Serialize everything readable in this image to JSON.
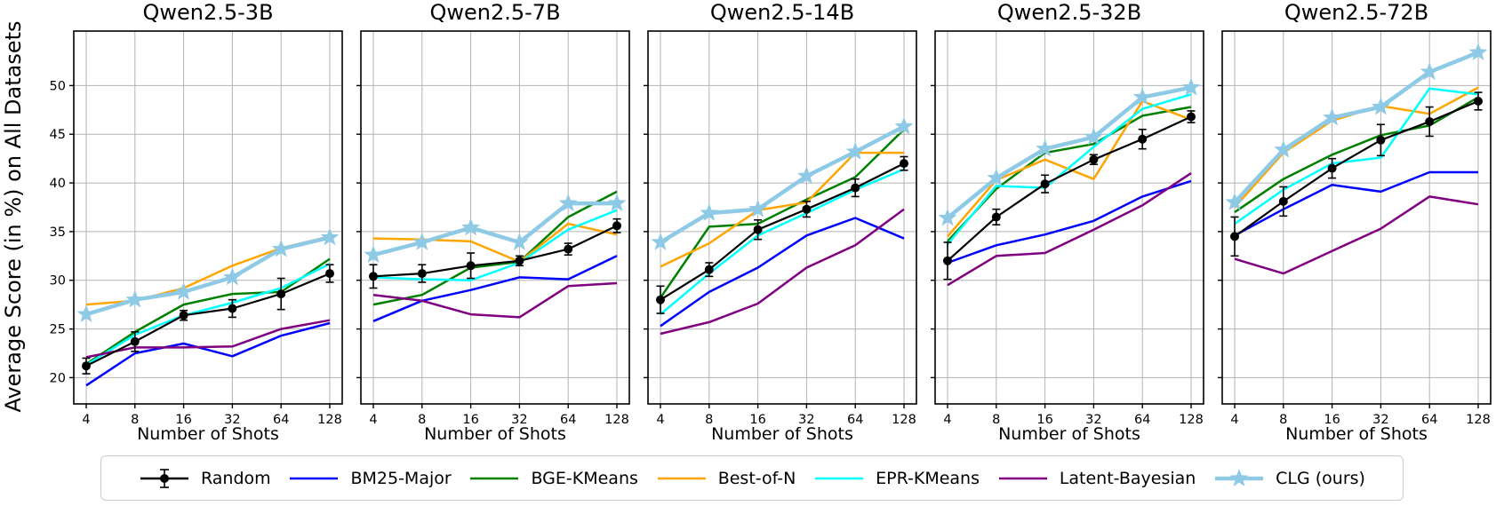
{
  "figure": {
    "ylabel": "Average Score (in %) on All Datasets",
    "xlabel": "Number of Shots",
    "x_tick_labels": [
      "4",
      "8",
      "16",
      "32",
      "64",
      "128"
    ],
    "y_ticks": [
      20,
      25,
      30,
      35,
      40,
      45,
      50
    ],
    "ylim": [
      17.3,
      55.6
    ],
    "x_scale": "log2",
    "grid": true,
    "grid_color": "#b3b3b3",
    "legend_position": "bottom"
  },
  "series_meta": [
    {
      "name": "Random",
      "color": "#000000",
      "line_width": 2.2,
      "marker": "circle-errorbar"
    },
    {
      "name": "BM25-Major",
      "color": "#0000ff",
      "line_width": 2.5,
      "marker": "none"
    },
    {
      "name": "BGE-KMeans",
      "color": "#008000",
      "line_width": 2.5,
      "marker": "none"
    },
    {
      "name": "Best-of-N",
      "color": "#ffa500",
      "line_width": 2.5,
      "marker": "none"
    },
    {
      "name": "EPR-KMeans",
      "color": "#00ffff",
      "line_width": 2.5,
      "marker": "none"
    },
    {
      "name": "Latent-Bayesian",
      "color": "#800080",
      "line_width": 2.5,
      "marker": "none"
    },
    {
      "name": "CLG (ours)",
      "color": "#8ecae6",
      "line_width": 4.5,
      "marker": "star"
    }
  ],
  "chart_data": [
    {
      "type": "line",
      "title": "Qwen2.5-3B",
      "x": [
        4,
        8,
        16,
        32,
        64,
        128
      ],
      "series": [
        {
          "name": "Random",
          "values": [
            21.2,
            23.7,
            26.4,
            27.1,
            28.6,
            30.7
          ]
        },
        {
          "name": "BM25-Major",
          "values": [
            19.2,
            22.5,
            23.5,
            22.2,
            24.3,
            25.6
          ]
        },
        {
          "name": "BGE-KMeans",
          "values": [
            21.4,
            24.7,
            27.5,
            28.6,
            28.8,
            32.2
          ]
        },
        {
          "name": "Best-of-N",
          "values": [
            27.5,
            27.9,
            29.2,
            31.5,
            33.3,
            34.5
          ]
        },
        {
          "name": "EPR-KMeans",
          "values": [
            21.3,
            24.4,
            26.4,
            27.7,
            29.2,
            31.7
          ]
        },
        {
          "name": "Latent-Bayesian",
          "values": [
            22.1,
            23.1,
            23.1,
            23.2,
            25.0,
            25.9
          ]
        },
        {
          "name": "CLG (ours)",
          "values": [
            26.5,
            28.0,
            28.8,
            30.3,
            33.2,
            34.4
          ]
        }
      ],
      "random_err": [
        0.8,
        1.0,
        0.5,
        0.9,
        1.6,
        0.9
      ]
    },
    {
      "type": "line",
      "title": "Qwen2.5-7B",
      "x": [
        4,
        8,
        16,
        32,
        64,
        128
      ],
      "series": [
        {
          "name": "Random",
          "values": [
            30.4,
            30.7,
            31.5,
            32.0,
            33.2,
            35.6
          ]
        },
        {
          "name": "BM25-Major",
          "values": [
            25.8,
            27.9,
            29.0,
            30.3,
            30.1,
            32.5
          ]
        },
        {
          "name": "BGE-KMeans",
          "values": [
            27.5,
            28.5,
            31.3,
            31.9,
            36.5,
            39.1
          ]
        },
        {
          "name": "Best-of-N",
          "values": [
            34.3,
            34.2,
            34.0,
            31.9,
            35.8,
            34.7
          ]
        },
        {
          "name": "EPR-KMeans",
          "values": [
            30.3,
            30.1,
            30.0,
            31.8,
            35.2,
            37.2
          ]
        },
        {
          "name": "Latent-Bayesian",
          "values": [
            28.5,
            27.9,
            26.5,
            26.2,
            29.4,
            29.7
          ]
        },
        {
          "name": "CLG (ours)",
          "values": [
            32.6,
            33.9,
            35.4,
            33.9,
            37.9,
            37.9
          ]
        }
      ],
      "random_err": [
        1.2,
        0.9,
        1.3,
        0.5,
        0.6,
        0.7
      ]
    },
    {
      "type": "line",
      "title": "Qwen2.5-14B",
      "x": [
        4,
        8,
        16,
        32,
        64,
        128
      ],
      "series": [
        {
          "name": "Random",
          "values": [
            28.0,
            31.1,
            35.2,
            37.3,
            39.5,
            42.0
          ]
        },
        {
          "name": "BM25-Major",
          "values": [
            25.3,
            28.8,
            31.3,
            34.6,
            36.4,
            34.3
          ]
        },
        {
          "name": "BGE-KMeans",
          "values": [
            28.2,
            35.5,
            35.8,
            38.3,
            40.6,
            45.5
          ]
        },
        {
          "name": "Best-of-N",
          "values": [
            31.4,
            33.8,
            37.2,
            38.0,
            43.1,
            43.1
          ]
        },
        {
          "name": "EPR-KMeans",
          "values": [
            26.5,
            30.7,
            34.6,
            36.9,
            39.3,
            41.4
          ]
        },
        {
          "name": "Latent-Bayesian",
          "values": [
            24.5,
            25.7,
            27.6,
            31.3,
            33.6,
            37.3
          ]
        },
        {
          "name": "CLG (ours)",
          "values": [
            33.9,
            36.9,
            37.3,
            40.7,
            43.2,
            45.8
          ]
        }
      ],
      "random_err": [
        1.4,
        0.7,
        1.0,
        0.8,
        0.9,
        0.7
      ]
    },
    {
      "type": "line",
      "title": "Qwen2.5-32B",
      "x": [
        4,
        8,
        16,
        32,
        64,
        128
      ],
      "series": [
        {
          "name": "Random",
          "values": [
            32.0,
            36.5,
            39.9,
            42.4,
            44.5,
            46.8
          ]
        },
        {
          "name": "BM25-Major",
          "values": [
            31.8,
            33.6,
            34.7,
            36.1,
            38.6,
            40.2
          ]
        },
        {
          "name": "BGE-KMeans",
          "values": [
            34.0,
            39.4,
            43.1,
            44.0,
            46.9,
            47.8
          ]
        },
        {
          "name": "Best-of-N",
          "values": [
            34.5,
            40.3,
            42.4,
            40.4,
            48.4,
            46.5
          ]
        },
        {
          "name": "EPR-KMeans",
          "values": [
            33.7,
            39.7,
            39.5,
            43.7,
            47.6,
            49.1
          ]
        },
        {
          "name": "Latent-Bayesian",
          "values": [
            29.5,
            32.5,
            32.8,
            35.2,
            37.7,
            41.0
          ]
        },
        {
          "name": "CLG (ours)",
          "values": [
            36.4,
            40.5,
            43.5,
            44.7,
            48.8,
            49.8
          ]
        }
      ],
      "random_err": [
        1.9,
        0.8,
        0.9,
        0.5,
        1.0,
        0.6
      ]
    },
    {
      "type": "line",
      "title": "Qwen2.5-72B",
      "x": [
        4,
        8,
        16,
        32,
        64,
        128
      ],
      "series": [
        {
          "name": "Random",
          "values": [
            34.5,
            38.1,
            41.5,
            44.4,
            46.3,
            48.4
          ]
        },
        {
          "name": "BM25-Major",
          "values": [
            34.6,
            37.3,
            39.8,
            39.1,
            41.1,
            41.1
          ]
        },
        {
          "name": "BGE-KMeans",
          "values": [
            37.0,
            40.4,
            42.9,
            44.9,
            45.9,
            48.8
          ]
        },
        {
          "name": "Best-of-N",
          "values": [
            37.5,
            43.1,
            46.4,
            47.9,
            47.1,
            49.8
          ]
        },
        {
          "name": "EPR-KMeans",
          "values": [
            35.8,
            39.3,
            42.0,
            42.6,
            49.7,
            49.1
          ]
        },
        {
          "name": "Latent-Bayesian",
          "values": [
            32.2,
            30.7,
            33.0,
            35.3,
            38.6,
            37.8
          ]
        },
        {
          "name": "CLG (ours)",
          "values": [
            38.0,
            43.4,
            46.7,
            47.8,
            51.4,
            53.4
          ]
        }
      ],
      "random_err": [
        2.0,
        1.5,
        1.0,
        1.6,
        1.5,
        0.9
      ]
    }
  ]
}
